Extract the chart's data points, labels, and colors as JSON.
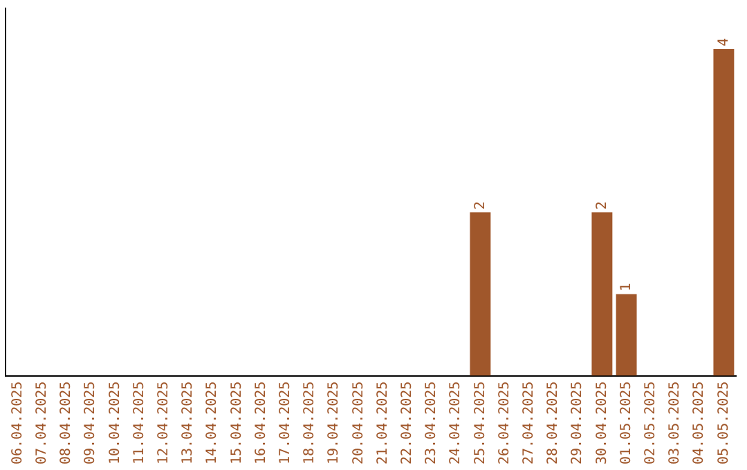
{
  "chart_data": {
    "type": "bar",
    "categories": [
      "06.04.2025",
      "07.04.2025",
      "08.04.2025",
      "09.04.2025",
      "10.04.2025",
      "11.04.2025",
      "12.04.2025",
      "13.04.2025",
      "14.04.2025",
      "15.04.2025",
      "16.04.2025",
      "17.04.2025",
      "18.04.2025",
      "19.04.2025",
      "20.04.2025",
      "21.04.2025",
      "22.04.2025",
      "23.04.2025",
      "24.04.2025",
      "25.04.2025",
      "26.04.2025",
      "27.04.2025",
      "28.04.2025",
      "29.04.2025",
      "30.04.2025",
      "01.05.2025",
      "02.05.2025",
      "03.05.2025",
      "04.05.2025",
      "05.05.2025"
    ],
    "values": [
      null,
      null,
      null,
      null,
      null,
      null,
      null,
      null,
      null,
      null,
      null,
      null,
      null,
      null,
      null,
      null,
      null,
      null,
      null,
      2,
      null,
      null,
      null,
      null,
      2,
      1,
      null,
      null,
      null,
      4
    ],
    "color": "#a0572b",
    "data_labels": true,
    "grid": false,
    "legend": false,
    "tick_labels": "x"
  }
}
